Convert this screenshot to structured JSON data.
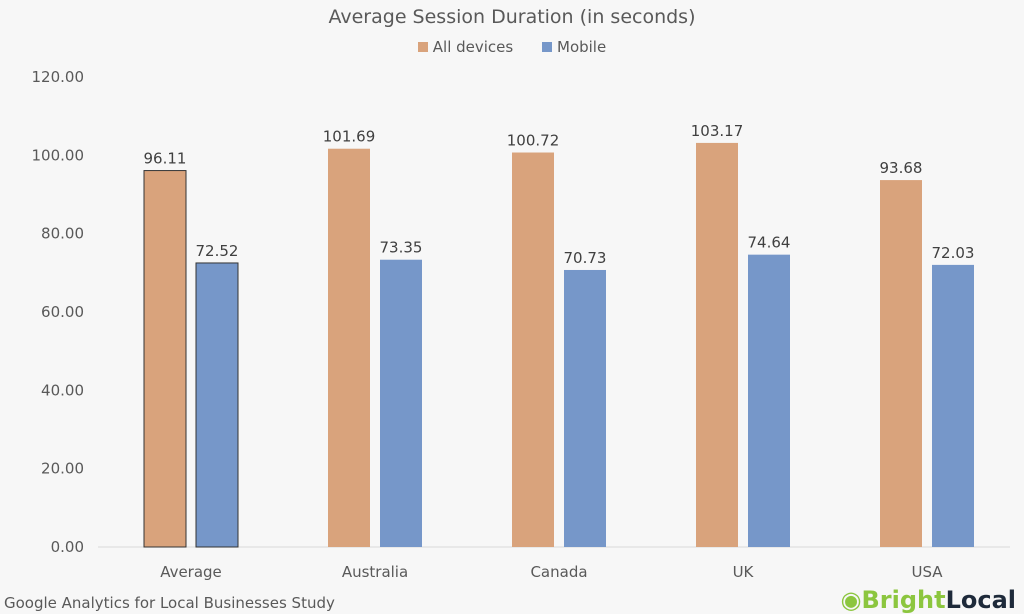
{
  "chart_data": {
    "type": "bar",
    "title": "Average Session Duration (in seconds)",
    "categories": [
      "Average",
      "Australia",
      "Canada",
      "UK",
      "USA"
    ],
    "series": [
      {
        "name": "All devices",
        "color": "#d9a37c",
        "values": [
          96.11,
          101.69,
          100.72,
          103.17,
          93.68
        ],
        "labels": [
          "96.11",
          "101.69",
          "100.72",
          "103.17",
          "93.68"
        ]
      },
      {
        "name": "Mobile",
        "color": "#7697c9",
        "values": [
          72.52,
          73.35,
          70.73,
          74.64,
          72.03
        ],
        "labels": [
          "72.52",
          "73.35",
          "70.73",
          "74.64",
          "72.03"
        ]
      }
    ],
    "ylim": [
      0,
      120
    ],
    "yticks": [
      "0.00",
      "20.00",
      "40.00",
      "60.00",
      "80.00",
      "100.00",
      "120.00"
    ],
    "grid": false,
    "legend": "top",
    "highlighted_category": "Average"
  },
  "footer": {
    "source": "Google Analytics for Local Businesses Study",
    "logo_part1": "Bright",
    "logo_part2": "Local"
  }
}
